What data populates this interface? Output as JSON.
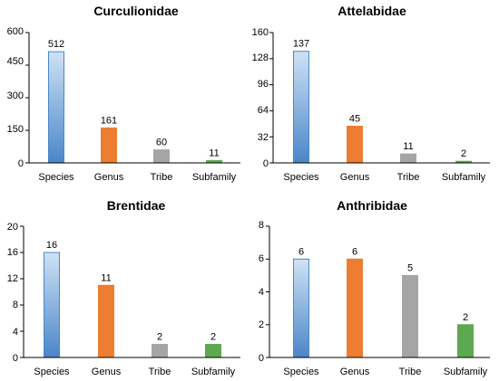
{
  "chart_data": [
    {
      "type": "bar",
      "title": "Curculionidae",
      "categories": [
        "Species",
        "Genus",
        "Tribe",
        "Subfamily"
      ],
      "values": [
        512,
        161,
        60,
        11
      ],
      "data_labels": [
        "512",
        "161",
        "60",
        "11"
      ],
      "yticks": [
        "0",
        "150",
        "300",
        "450",
        "600"
      ],
      "ylim": [
        0,
        600
      ],
      "colors": [
        "#4a86c8",
        "#ed7d31",
        "#a5a5a5",
        "#5ea84f"
      ],
      "gradient_top": "#cfe2f5",
      "grid": false
    },
    {
      "type": "bar",
      "title": "Attelabidae",
      "categories": [
        "Species",
        "Genus",
        "Tribe",
        "Subfamily"
      ],
      "values": [
        137,
        45,
        11,
        2
      ],
      "data_labels": [
        "137",
        "45",
        "11",
        "2"
      ],
      "yticks": [
        "0",
        "32",
        "64",
        "96",
        "128",
        "160"
      ],
      "ylim": [
        0,
        160
      ],
      "colors": [
        "#4a86c8",
        "#ed7d31",
        "#a5a5a5",
        "#5ea84f"
      ],
      "gradient_top": "#cfe2f5",
      "grid": false
    },
    {
      "type": "bar",
      "title": "Brentidae",
      "categories": [
        "Species",
        "Genus",
        "Tribe",
        "Subfamily"
      ],
      "values": [
        16,
        11,
        2,
        2
      ],
      "data_labels": [
        "16",
        "11",
        "2",
        "2"
      ],
      "yticks": [
        "0",
        "4",
        "8",
        "12",
        "16",
        "20"
      ],
      "ylim": [
        0,
        20
      ],
      "colors": [
        "#4a86c8",
        "#ed7d31",
        "#a5a5a5",
        "#5ea84f"
      ],
      "gradient_top": "#cfe2f5",
      "grid": false
    },
    {
      "type": "bar",
      "title": "Anthribidae",
      "categories": [
        "Species",
        "Genus",
        "Tribe",
        "Subfamily"
      ],
      "values": [
        6,
        6,
        5,
        2
      ],
      "data_labels": [
        "6",
        "6",
        "5",
        "2"
      ],
      "yticks": [
        "0",
        "2",
        "4",
        "6",
        "8"
      ],
      "ylim": [
        0,
        8
      ],
      "colors": [
        "#4a86c8",
        "#ed7d31",
        "#a5a5a5",
        "#5ea84f"
      ],
      "gradient_top": "#cfe2f5",
      "grid": false
    }
  ]
}
